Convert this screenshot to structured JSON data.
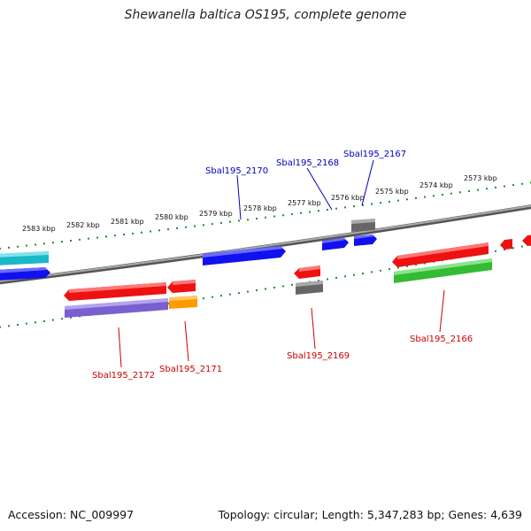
{
  "title": "Shewanella baltica OS195, complete genome",
  "footer": {
    "accession": "Accession: NC_009997",
    "summary": "Topology: circular; Length: 5,347,283 bp; Genes: 4,639"
  },
  "scale_labels": [
    "2583 kbp",
    "2582 kbp",
    "2581 kbp",
    "2580 kbp",
    "2579 kbp",
    "2578 kbp",
    "2577 kbp",
    "2576 kbp",
    "2575 kbp",
    "2574 kbp",
    "2573 kbp"
  ],
  "gene_labels": {
    "top": [
      "Sbal195_2170",
      "Sbal195_2168",
      "Sbal195_2167"
    ],
    "bottom": [
      "Sbal195_2172",
      "Sbal195_2171",
      "Sbal195_2169",
      "Sbal195_2166"
    ]
  },
  "colors": {
    "backbone": "#888888",
    "tick": "#2a8a2a",
    "label_top": "#0000bb",
    "label_bottom": "#cc0000",
    "red": "#ee1111",
    "blue": "#1111ee",
    "cyan": "#1ab8c8",
    "purple": "#7a5fd0",
    "orange": "#ff9900",
    "gray": "#666666",
    "green": "#33bb33"
  }
}
